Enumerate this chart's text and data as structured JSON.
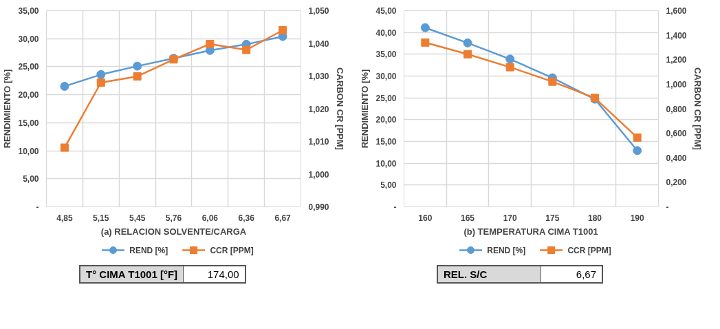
{
  "chart_data": [
    {
      "type": "line",
      "xlabel": "(a) RELACION SOLVENTE/CARGA",
      "ylabel": "RENDIMIENTO [%]",
      "y2label": "CARBON CR [PPM]",
      "categories": [
        "4,85",
        "5,15",
        "5,45",
        "5,76",
        "6,06",
        "6,36",
        "6,67"
      ],
      "series": [
        {
          "name": "REND [%]",
          "color": "#5b9bd5",
          "marker": "circle",
          "values": [
            21.5,
            23.6,
            25.1,
            26.5,
            27.9,
            29.0,
            30.4
          ]
        },
        {
          "name": "CCR [PPM]",
          "color": "#ed7d31",
          "marker": "square",
          "axis": "y2",
          "values": [
            1.0081,
            1.028,
            1.0299,
            1.0351,
            1.0398,
            1.038,
            1.044
          ]
        }
      ],
      "ylim": [
        0,
        35
      ],
      "yticks": [
        {
          "value": 0,
          "label": "-"
        },
        {
          "value": 5,
          "label": "5,00"
        },
        {
          "value": 10,
          "label": "10,00"
        },
        {
          "value": 15,
          "label": "15,00"
        },
        {
          "value": 20,
          "label": "20,00"
        },
        {
          "value": 25,
          "label": "25,00"
        },
        {
          "value": 30,
          "label": "30,00"
        },
        {
          "value": 35,
          "label": "35,00"
        }
      ],
      "y2lim": [
        0.99,
        1.05
      ],
      "y2ticks": [
        {
          "value": 0.99,
          "label": "0,990"
        },
        {
          "value": 1.0,
          "label": "1,000"
        },
        {
          "value": 1.01,
          "label": "1,010"
        },
        {
          "value": 1.02,
          "label": "1,020"
        },
        {
          "value": 1.03,
          "label": "1,030"
        },
        {
          "value": 1.04,
          "label": "1,040"
        },
        {
          "value": 1.05,
          "label": "1,050"
        }
      ],
      "grid": true,
      "legend": "bottom",
      "line_style": "solid",
      "annotations": [
        "T° CIMA T1001 [°F]",
        "174,00"
      ]
    },
    {
      "type": "line",
      "xlabel": "(b) TEMPERATURA CIMA T1001",
      "ylabel": "RENDIMIENTO [%]",
      "y2label": "CARBON CR [PPM]",
      "categories": [
        "160",
        "165",
        "170",
        "175",
        "180",
        "190"
      ],
      "series": [
        {
          "name": "REND [%]",
          "color": "#5b9bd5",
          "marker": "circle",
          "values": [
            41.1,
            37.6,
            33.9,
            29.6,
            24.7,
            12.9
          ]
        },
        {
          "name": "CCR [PPM]",
          "color": "#ed7d31",
          "marker": "square",
          "axis": "y2",
          "values": [
            1.34,
            1.245,
            1.139,
            1.021,
            0.888,
            0.565
          ]
        }
      ],
      "ylim": [
        0,
        45
      ],
      "yticks": [
        {
          "value": 0,
          "label": "-"
        },
        {
          "value": 5,
          "label": "5,00"
        },
        {
          "value": 10,
          "label": "10,00"
        },
        {
          "value": 15,
          "label": "15,00"
        },
        {
          "value": 20,
          "label": "20,00"
        },
        {
          "value": 25,
          "label": "25,00"
        },
        {
          "value": 30,
          "label": "30,00"
        },
        {
          "value": 35,
          "label": "35,00"
        },
        {
          "value": 40,
          "label": "40,00"
        },
        {
          "value": 45,
          "label": "45,00"
        }
      ],
      "y2lim": [
        0,
        1.6
      ],
      "y2ticks": [
        {
          "value": 0,
          "label": "-"
        },
        {
          "value": 0.2,
          "label": "0,200"
        },
        {
          "value": 0.4,
          "label": "0,400"
        },
        {
          "value": 0.6,
          "label": "0,600"
        },
        {
          "value": 0.8,
          "label": "0,800"
        },
        {
          "value": 1.0,
          "label": "1,000"
        },
        {
          "value": 1.2,
          "label": "1,200"
        },
        {
          "value": 1.4,
          "label": "1,400"
        },
        {
          "value": 1.6,
          "label": "1,600"
        }
      ],
      "grid": true,
      "legend": "bottom",
      "line_style": "solid",
      "annotations": [
        "REL. S/C",
        "6,67"
      ]
    }
  ]
}
